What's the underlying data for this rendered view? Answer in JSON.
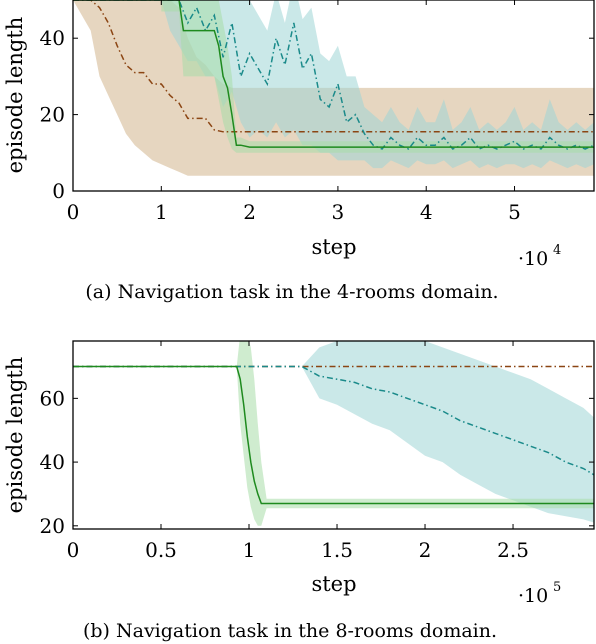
{
  "chart_data": [
    {
      "type": "line",
      "caption": "(a) Navigation task in the 4-rooms domain.",
      "xlabel": "step",
      "ylabel": "episode length",
      "x_scale_base": "·10",
      "x_scale_exp": "4",
      "xlim": [
        0,
        59000
      ],
      "ylim": [
        0,
        50
      ],
      "x_ticks": [
        0,
        10000,
        20000,
        30000,
        40000,
        50000
      ],
      "x_tick_labels": [
        "0",
        "1",
        "2",
        "3",
        "4",
        "5"
      ],
      "y_ticks": [
        0,
        20,
        40
      ],
      "y_tick_labels": [
        "0",
        "20",
        "40"
      ],
      "grid": false,
      "series": [
        {
          "style": "dashdot-brown",
          "color": "#8B4513",
          "band_color": "#d2b48c",
          "x": [
            0,
            2000,
            3000,
            4000,
            5000,
            6000,
            7000,
            8000,
            9000,
            10000,
            11000,
            12000,
            13000,
            14000,
            15000,
            16000,
            17000,
            18000,
            20000,
            25000,
            30000,
            40000,
            50000,
            59000
          ],
          "y": [
            50,
            50,
            48,
            44,
            38,
            33,
            31,
            31,
            28,
            28,
            25,
            23,
            19,
            19,
            19,
            16,
            15.5,
            15.5,
            15.5,
            15.5,
            15.5,
            15.5,
            15.5,
            15.5
          ],
          "lower": [
            50,
            42,
            30,
            25,
            20,
            15,
            12,
            10,
            8,
            7,
            6,
            5,
            4,
            4,
            4,
            4,
            4,
            4,
            4,
            4,
            4,
            4,
            4,
            4
          ],
          "upper": [
            50,
            50,
            50,
            50,
            50,
            50,
            50,
            50,
            50,
            50,
            50,
            48,
            40,
            35,
            33,
            30,
            28,
            27,
            27,
            27,
            27,
            27,
            27,
            27
          ]
        },
        {
          "style": "dashdot-teal",
          "color": "#1a8a8a",
          "band_color": "#9fd6d6",
          "x": [
            0,
            10000,
            11000,
            12000,
            13000,
            14000,
            15000,
            16000,
            17000,
            18000,
            19000,
            20000,
            21000,
            22000,
            23000,
            24000,
            25000,
            26000,
            27000,
            28000,
            29000,
            30000,
            31000,
            32000,
            33000,
            34000,
            35000,
            36000,
            37000,
            38000,
            39000,
            40000,
            41000,
            42000,
            43000,
            44000,
            45000,
            46000,
            47000,
            48000,
            49000,
            50000,
            51000,
            52000,
            53000,
            54000,
            55000,
            56000,
            57000,
            58000,
            59000
          ],
          "y": [
            50,
            50,
            50,
            50,
            44,
            48,
            42,
            46,
            35,
            44,
            30,
            36,
            32,
            28,
            40,
            33,
            44,
            32,
            36,
            24,
            22,
            28,
            18,
            20,
            15,
            12,
            11,
            14,
            12,
            11,
            14,
            12,
            12,
            14,
            11,
            12,
            14,
            11,
            12,
            11,
            12,
            13,
            11,
            12,
            11,
            14,
            12,
            11,
            12,
            11,
            12
          ],
          "lower": [
            50,
            50,
            42,
            38,
            34,
            34,
            30,
            30,
            22,
            26,
            18,
            14,
            16,
            14,
            18,
            14,
            16,
            12,
            12,
            10,
            10,
            8,
            8,
            8,
            8,
            6,
            6,
            8,
            7,
            6,
            8,
            7,
            7,
            8,
            6,
            7,
            8,
            6,
            7,
            6,
            7,
            7,
            6,
            7,
            6,
            8,
            7,
            6,
            7,
            6,
            7
          ],
          "upper": [
            50,
            50,
            58,
            60,
            60,
            60,
            60,
            60,
            58,
            58,
            52,
            50,
            46,
            42,
            52,
            44,
            55,
            45,
            48,
            36,
            34,
            38,
            30,
            30,
            22,
            20,
            18,
            22,
            18,
            16,
            22,
            18,
            18,
            24,
            16,
            18,
            22,
            16,
            18,
            16,
            18,
            22,
            16,
            18,
            16,
            24,
            18,
            16,
            18,
            16,
            18
          ]
        },
        {
          "style": "solid-green",
          "color": "#1e8a1e",
          "band_color": "#a8dca8",
          "x": [
            0,
            10000,
            10001,
            11000,
            11500,
            12000,
            12500,
            13000,
            14000,
            15000,
            16000,
            16500,
            17000,
            17500,
            18000,
            18500,
            19000,
            20000,
            25000,
            30000,
            35000,
            40000,
            45000,
            50000,
            55000,
            59000
          ],
          "y": [
            50,
            50,
            50,
            50,
            50,
            50,
            42,
            42,
            42,
            42,
            42,
            38,
            30,
            27,
            20,
            12,
            12,
            11.5,
            11.5,
            11.5,
            11.5,
            11.5,
            11.5,
            11.5,
            11.5,
            11.5
          ],
          "lower": [
            50,
            50,
            47,
            47,
            47,
            47,
            30,
            30,
            30,
            30,
            30,
            24,
            18,
            14,
            11,
            10,
            10,
            10,
            10,
            10,
            10,
            10,
            10,
            10,
            10,
            10
          ],
          "upper": [
            50,
            50,
            55,
            58,
            58,
            58,
            58,
            54,
            54,
            54,
            54,
            50,
            44,
            38,
            30,
            14,
            14,
            13,
            13,
            13,
            13,
            13,
            13,
            13,
            13,
            13
          ]
        }
      ]
    },
    {
      "type": "line",
      "caption": "(b) Navigation task in the 8-rooms domain.",
      "xlabel": "step",
      "ylabel": "episode length",
      "x_scale_base": "·10",
      "x_scale_exp": "5",
      "xlim": [
        0,
        296000
      ],
      "ylim": [
        19,
        78
      ],
      "x_ticks": [
        0,
        50000,
        100000,
        150000,
        200000,
        250000
      ],
      "x_tick_labels": [
        "0",
        "0.5",
        "1",
        "1.5",
        "2",
        "2.5"
      ],
      "y_ticks": [
        20,
        40,
        60
      ],
      "y_tick_labels": [
        "20",
        "40",
        "60"
      ],
      "grid": false,
      "series": [
        {
          "style": "dashdot-brown",
          "color": "#8B4513",
          "band_color": "#d2b48c",
          "x": [
            0,
            296000
          ],
          "y": [
            70,
            70
          ],
          "lower": [
            70,
            70
          ],
          "upper": [
            70,
            70
          ]
        },
        {
          "style": "dashdot-teal",
          "color": "#1a8a8a",
          "band_color": "#9fd6d6",
          "x": [
            0,
            130000,
            140000,
            150000,
            160000,
            170000,
            180000,
            190000,
            200000,
            210000,
            220000,
            230000,
            240000,
            250000,
            260000,
            270000,
            280000,
            290000,
            296000
          ],
          "y": [
            70,
            70,
            67,
            66,
            65,
            63,
            62,
            60,
            58,
            56,
            53,
            51,
            49,
            47,
            45,
            43,
            40,
            38,
            36
          ],
          "lower": [
            70,
            70,
            60,
            58,
            55,
            52,
            50,
            46,
            42,
            40,
            36,
            33,
            30,
            28,
            26,
            24,
            23,
            22,
            21
          ],
          "upper": [
            70,
            70,
            76,
            78,
            78,
            78,
            78,
            78,
            78,
            76,
            74,
            72,
            70,
            68,
            66,
            63,
            60,
            57,
            54
          ]
        },
        {
          "style": "solid-green",
          "color": "#1e8a1e",
          "band_color": "#a8dca8",
          "x": [
            0,
            93000,
            95000,
            97000,
            99000,
            101000,
            103000,
            105000,
            107000,
            110000,
            120000,
            150000,
            200000,
            250000,
            296000
          ],
          "y": [
            70,
            70,
            66,
            58,
            48,
            40,
            34,
            30,
            27,
            27,
            27,
            27,
            27,
            27,
            27
          ],
          "lower": [
            70,
            70,
            52,
            42,
            32,
            26,
            22,
            20,
            20,
            25.5,
            25.5,
            25.5,
            25.5,
            25.5,
            25.5
          ],
          "upper": [
            70,
            70,
            80,
            80,
            80,
            76,
            66,
            52,
            40,
            28.5,
            28.5,
            28.5,
            28.5,
            28.5,
            28.5
          ]
        }
      ]
    }
  ]
}
